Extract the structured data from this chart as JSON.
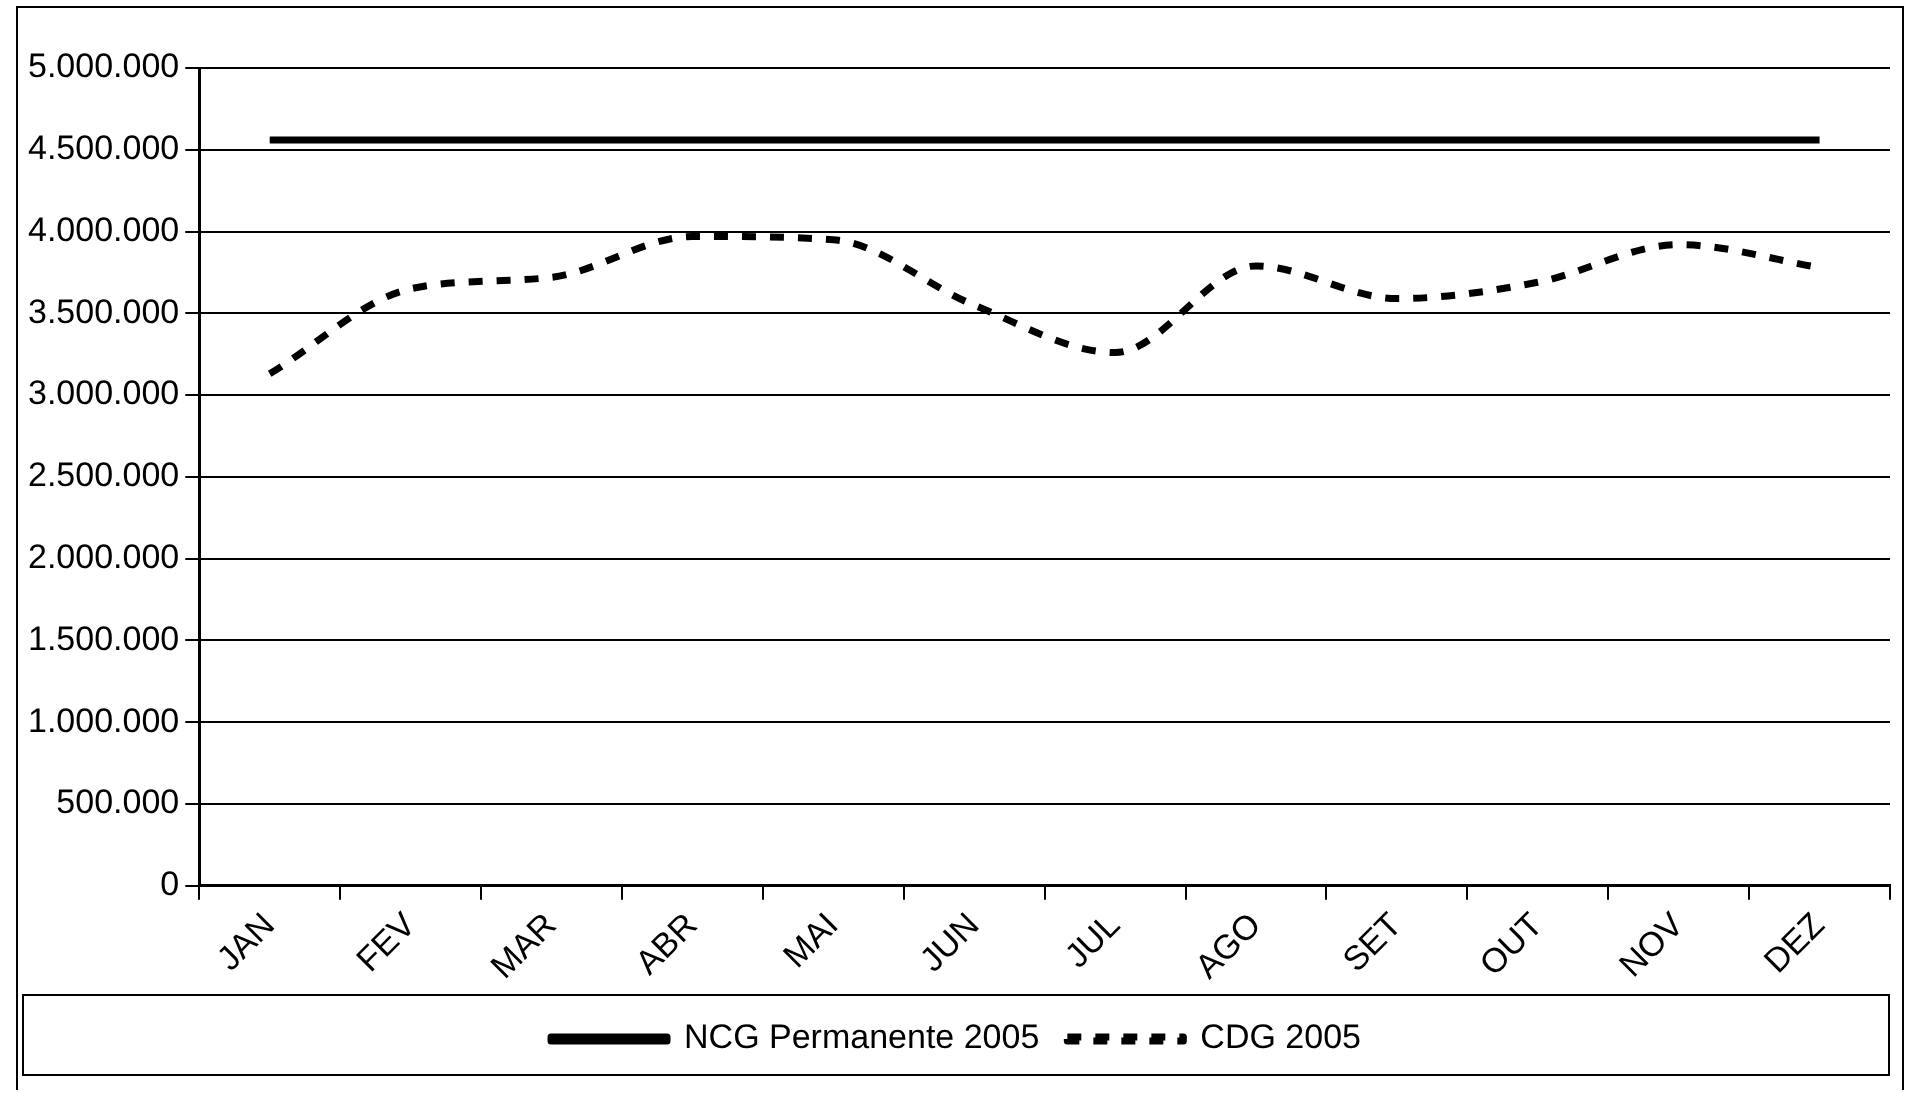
{
  "chart_data": {
    "type": "line",
    "categories": [
      "JAN",
      "FEV",
      "MAR",
      "ABR",
      "MAI",
      "JUN",
      "JUL",
      "AGO",
      "SET",
      "OUT",
      "NOV",
      "DEZ"
    ],
    "series": [
      {
        "name": "NCG Permanente 2005",
        "color": "#000000",
        "line_style": "solid",
        "values": [
          4560000,
          4560000,
          4560000,
          4560000,
          4560000,
          4560000,
          4560000,
          4560000,
          4560000,
          4560000,
          4560000,
          4560000
        ]
      },
      {
        "name": "CDG 2005",
        "color": "#000000",
        "line_style": "dashed",
        "values": [
          3130000,
          3650000,
          3720000,
          3970000,
          3950000,
          3550000,
          3260000,
          3790000,
          3590000,
          3690000,
          3920000,
          3780000
        ]
      }
    ],
    "ylim": [
      0,
      5000000
    ],
    "yticks": [
      {
        "value": 0,
        "label": "0"
      },
      {
        "value": 500000,
        "label": "500.000"
      },
      {
        "value": 1000000,
        "label": "1.000.000"
      },
      {
        "value": 1500000,
        "label": "1.500.000"
      },
      {
        "value": 2000000,
        "label": "2.000.000"
      },
      {
        "value": 2500000,
        "label": "2.500.000"
      },
      {
        "value": 3000000,
        "label": "3.000.000"
      },
      {
        "value": 3500000,
        "label": "3.500.000"
      },
      {
        "value": 4000000,
        "label": "4.000.000"
      },
      {
        "value": 4500000,
        "label": "4.500.000"
      },
      {
        "value": 5000000,
        "label": "5.000.000"
      }
    ],
    "grid": "y",
    "legend": "bottom",
    "marker": "none"
  }
}
